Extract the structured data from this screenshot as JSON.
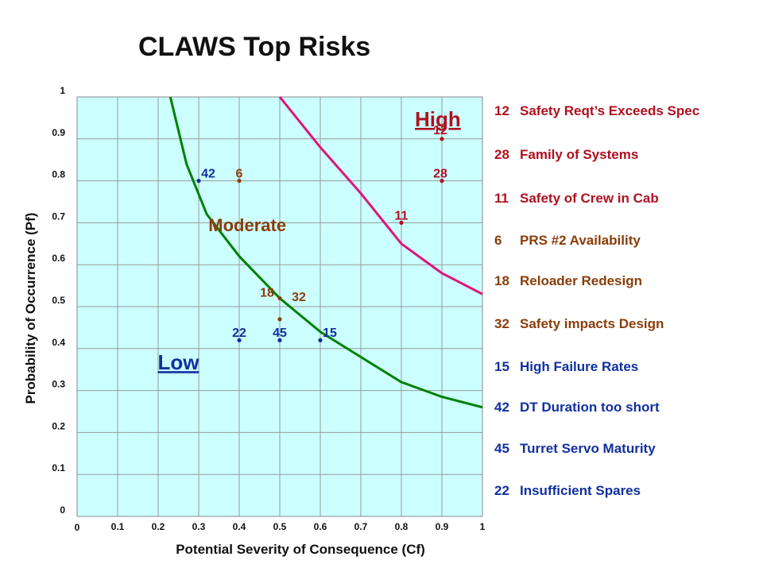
{
  "title": "CLAWS Top Risks",
  "colors": {
    "plot_bg": "#ccffff",
    "grid": "#999999",
    "curve_low": "#008000",
    "curve_high": "#e0157a",
    "high": "#b01020",
    "moderate": "#8b3d0a",
    "low": "#1030a0"
  },
  "chart_data": {
    "type": "scatter",
    "title": "CLAWS Top Risks",
    "xlabel": "Potential Severity of Consequence (Cf)",
    "ylabel": "Probability of Occurrence (Pf)",
    "xlim": [
      0,
      1
    ],
    "ylim": [
      0,
      1
    ],
    "grid": true,
    "x_tick_labels": [
      "0",
      "0.1",
      "0.2",
      "0.3",
      "0.4",
      "0.5",
      "0.6",
      "0.7",
      "0.8",
      "0.9",
      "1"
    ],
    "y_tick_labels": [
      "0",
      "0.1",
      "0.2",
      "0.3",
      "0.4",
      "0.5",
      "0.6",
      "0.7",
      "0.8",
      "0.9",
      "1"
    ],
    "regions": [
      {
        "label": "High",
        "category": "high",
        "x": 0.89,
        "y": 0.93
      },
      {
        "label": "Moderate",
        "category": "moderate",
        "x": 0.42,
        "y": 0.68
      },
      {
        "label": "Low",
        "category": "low",
        "x": 0.25,
        "y": 0.35
      }
    ],
    "curves": [
      {
        "category": "low",
        "points": [
          [
            0.23,
            1.0
          ],
          [
            0.27,
            0.84
          ],
          [
            0.32,
            0.72
          ],
          [
            0.4,
            0.62
          ],
          [
            0.5,
            0.52
          ],
          [
            0.6,
            0.44
          ],
          [
            0.7,
            0.38
          ],
          [
            0.8,
            0.32
          ],
          [
            0.9,
            0.285
          ],
          [
            1.0,
            0.26
          ]
        ]
      },
      {
        "category": "high",
        "points": [
          [
            0.5,
            1.0
          ],
          [
            0.55,
            0.94
          ],
          [
            0.6,
            0.88
          ],
          [
            0.7,
            0.77
          ],
          [
            0.8,
            0.65
          ],
          [
            0.9,
            0.58
          ],
          [
            1.0,
            0.53
          ]
        ]
      }
    ],
    "points": [
      {
        "id": "12",
        "x": 0.9,
        "y": 0.9,
        "category": "high",
        "label_dx": -2,
        "label_dy": -18
      },
      {
        "id": "28",
        "x": 0.9,
        "y": 0.8,
        "category": "high",
        "label_dx": -2,
        "label_dy": -16
      },
      {
        "id": "11",
        "x": 0.8,
        "y": 0.7,
        "category": "high",
        "label_dx": 0,
        "label_dy": -16
      },
      {
        "id": "6",
        "x": 0.4,
        "y": 0.8,
        "category": "moderate",
        "label_dx": 0,
        "label_dy": -16
      },
      {
        "id": "18",
        "x": 0.5,
        "y": 0.52,
        "category": "moderate",
        "label_dx": -16,
        "label_dy": -14
      },
      {
        "id": "32",
        "x": 0.5,
        "y": 0.47,
        "category": "moderate",
        "label_dx": 24,
        "label_dy": -35
      },
      {
        "id": "42",
        "x": 0.3,
        "y": 0.8,
        "category": "low",
        "label_dx": 12,
        "label_dy": -16
      },
      {
        "id": "22",
        "x": 0.4,
        "y": 0.42,
        "category": "low",
        "label_dx": 0,
        "label_dy": -16
      },
      {
        "id": "45",
        "x": 0.5,
        "y": 0.42,
        "category": "low",
        "label_dx": 0,
        "label_dy": -16
      },
      {
        "id": "15",
        "x": 0.6,
        "y": 0.42,
        "category": "low",
        "label_dx": 12,
        "label_dy": -16
      }
    ]
  },
  "risk_list": [
    {
      "id": "12",
      "text": "Safety Reqt’s Exceeds Spec",
      "category": "high"
    },
    {
      "id": "28",
      "text": "Family of Systems",
      "category": "high"
    },
    {
      "id": "11",
      "text": "Safety of Crew in Cab",
      "category": "high"
    },
    {
      "id": "6",
      "text": "PRS #2 Availability",
      "category": "moderate"
    },
    {
      "id": "18",
      "text": "Reloader Redesign",
      "category": "moderate"
    },
    {
      "id": "32",
      "text": "Safety impacts Design",
      "category": "moderate"
    },
    {
      "id": "15",
      "text": "High Failure Rates",
      "category": "low"
    },
    {
      "id": "42",
      "text": "DT Duration too short",
      "category": "low"
    },
    {
      "id": "45",
      "text": "Turret Servo Maturity",
      "category": "low"
    },
    {
      "id": "22",
      "text": "Insufficient  Spares",
      "category": "low"
    }
  ]
}
